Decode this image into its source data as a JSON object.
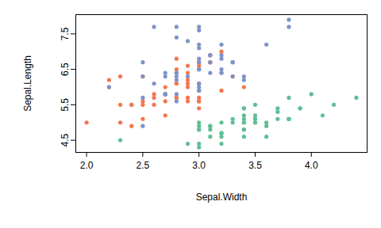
{
  "chart_data": {
    "type": "scatter",
    "x_label": "Sepal.Width",
    "y_label": "Sepal.Length",
    "xlim": [
      1.904,
      4.496
    ],
    "ylim": [
      4.156,
      8.044
    ],
    "xticks": [
      {
        "value": 2.0,
        "label": "2.0"
      },
      2.5,
      {
        "value": 3.0,
        "label": "3.0"
      },
      3.5,
      {
        "value": 4.0,
        "label": "4.0"
      }
    ],
    "yticks": [
      4.5,
      5.5,
      6.5,
      7.5
    ],
    "grid": false,
    "marker": "circle",
    "series": [
      {
        "color": "#5fbf94",
        "x": [
          3.5,
          3.0,
          3.2,
          3.1,
          3.6,
          3.9,
          3.4,
          3.4,
          2.9,
          3.1,
          3.7,
          3.4,
          3.0,
          3.0,
          4.0,
          4.4,
          3.9,
          3.5,
          3.8,
          3.8,
          3.4,
          3.7,
          3.6,
          3.3,
          3.4,
          3.0,
          3.4,
          3.5,
          3.4,
          3.2,
          3.1,
          3.4,
          4.1,
          4.2,
          3.1,
          3.2,
          3.5,
          3.6,
          3.0,
          3.4,
          3.5,
          2.3,
          3.2,
          3.5,
          3.8,
          3.0,
          3.8,
          3.2,
          3.7,
          3.3
        ],
        "values": [
          5.1,
          4.9,
          4.7,
          4.6,
          5.0,
          5.4,
          4.6,
          5.0,
          4.4,
          4.9,
          5.4,
          4.8,
          4.8,
          4.3,
          5.8,
          5.7,
          5.4,
          5.1,
          5.7,
          5.1,
          5.4,
          5.1,
          4.6,
          5.1,
          4.8,
          5.0,
          5.0,
          5.2,
          5.2,
          4.7,
          4.8,
          5.4,
          5.2,
          5.5,
          4.9,
          5.0,
          5.5,
          4.9,
          4.4,
          5.1,
          5.0,
          4.5,
          4.4,
          5.0,
          5.1,
          4.8,
          5.1,
          4.6,
          5.3,
          5.0
        ]
      },
      {
        "color": "#f4774f",
        "x": [
          3.2,
          3.2,
          3.1,
          2.3,
          2.8,
          2.8,
          3.3,
          2.4,
          2.9,
          2.7,
          2.0,
          3.0,
          2.2,
          2.9,
          2.9,
          3.1,
          3.0,
          2.7,
          2.2,
          2.5,
          3.2,
          2.8,
          2.5,
          2.8,
          2.9,
          3.0,
          2.8,
          3.0,
          2.9,
          2.6,
          2.4,
          2.4,
          2.7,
          2.7,
          3.0,
          3.4,
          3.1,
          2.3,
          3.0,
          2.5,
          2.6,
          3.0,
          2.6,
          2.3,
          2.7,
          3.0,
          2.9,
          2.9,
          2.5,
          2.8
        ],
        "values": [
          7.0,
          6.4,
          6.9,
          5.5,
          6.5,
          5.7,
          6.3,
          4.9,
          6.6,
          5.2,
          5.0,
          5.9,
          6.0,
          6.1,
          5.6,
          6.7,
          5.6,
          5.8,
          6.2,
          5.6,
          5.9,
          6.1,
          6.3,
          6.1,
          6.4,
          6.6,
          6.8,
          6.7,
          6.0,
          5.7,
          5.5,
          5.5,
          5.8,
          6.0,
          5.4,
          6.0,
          6.7,
          6.3,
          5.6,
          5.5,
          5.5,
          6.1,
          5.8,
          5.0,
          5.6,
          5.7,
          5.7,
          6.2,
          5.1,
          5.7
        ]
      },
      {
        "color": "#7f93c9",
        "x": [
          3.3,
          2.7,
          3.0,
          2.9,
          3.0,
          3.0,
          2.5,
          2.9,
          2.5,
          3.6,
          3.2,
          2.7,
          3.0,
          2.5,
          2.8,
          3.2,
          3.0,
          3.8,
          2.6,
          2.2,
          3.2,
          2.8,
          2.8,
          2.7,
          3.3,
          3.2,
          2.8,
          3.0,
          2.8,
          3.0,
          2.8,
          3.8,
          2.8,
          2.8,
          2.6,
          3.0,
          3.4,
          3.1,
          3.0,
          3.1,
          3.1,
          3.1,
          2.7,
          3.2,
          3.3,
          3.0,
          2.5,
          3.0,
          3.4,
          3.0
        ],
        "values": [
          6.3,
          5.8,
          7.1,
          6.3,
          6.5,
          7.6,
          4.9,
          7.3,
          6.7,
          7.2,
          6.5,
          6.4,
          6.8,
          5.7,
          5.8,
          6.4,
          6.5,
          7.7,
          7.7,
          6.0,
          6.9,
          5.6,
          7.7,
          6.3,
          6.7,
          7.2,
          6.2,
          6.1,
          6.4,
          7.2,
          7.4,
          7.9,
          6.4,
          6.3,
          6.1,
          7.7,
          6.3,
          6.4,
          6.0,
          6.9,
          6.7,
          6.9,
          5.8,
          6.8,
          6.7,
          6.7,
          6.3,
          6.5,
          6.2,
          5.9
        ]
      }
    ]
  }
}
